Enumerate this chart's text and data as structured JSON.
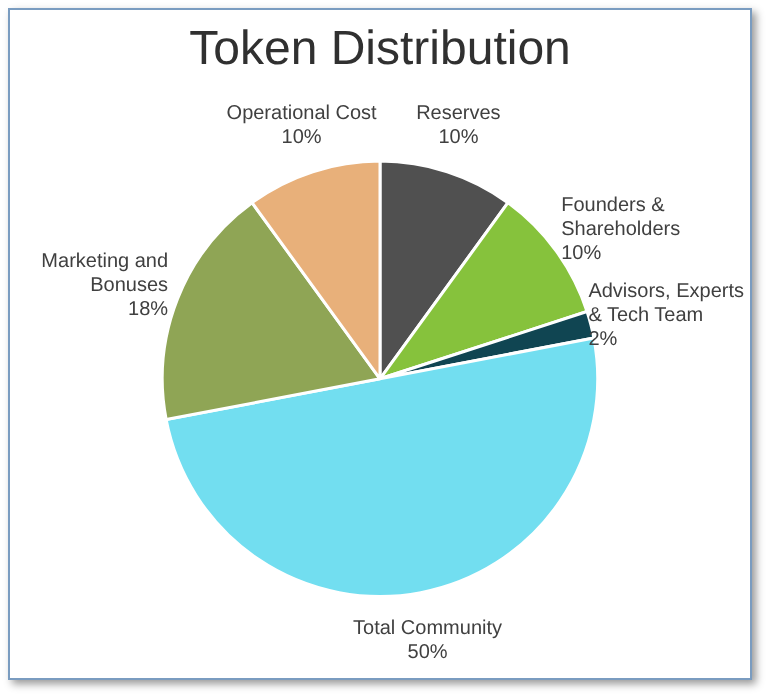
{
  "chart_data": {
    "type": "pie",
    "title": "Token Distribution",
    "categories": [
      "Reserves",
      "Founders & Shareholders",
      "Advisors, Experts & Tech Team",
      "Total Community",
      "Marketing and Bonuses",
      "Operational Cost"
    ],
    "values": [
      10,
      10,
      2,
      50,
      18,
      10
    ],
    "value_labels": [
      "10%",
      "10%",
      "2%",
      "50%",
      "18%",
      "10%"
    ],
    "colors": [
      "#505050",
      "#86c23c",
      "#104552",
      "#72def0",
      "#8fa555",
      "#e8b07a"
    ],
    "legend": false
  }
}
